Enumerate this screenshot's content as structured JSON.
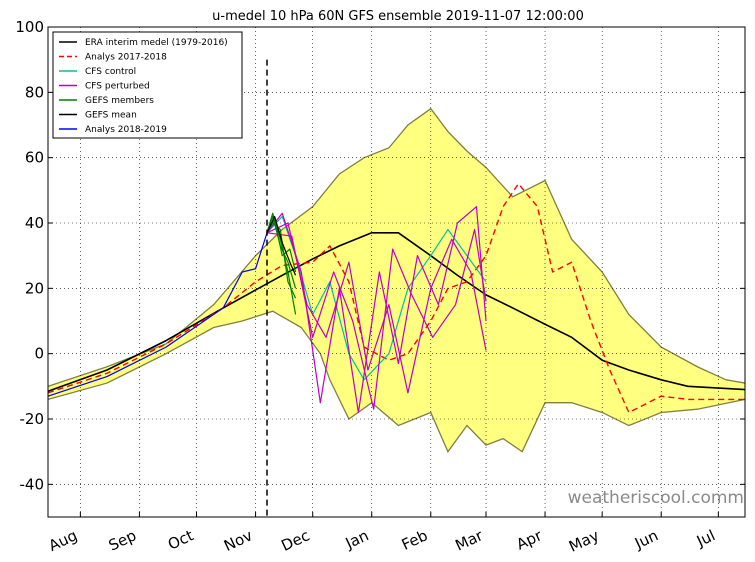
{
  "chart_data": {
    "type": "line",
    "title": "u-medel 10 hPa 60N GFS ensemble 2019-11-07 12:00:00",
    "xlabel": "",
    "ylabel": "",
    "ylim": [
      -50,
      100
    ],
    "yticks": [
      100,
      80,
      60,
      40,
      20,
      0,
      -20,
      -40
    ],
    "xticks": [
      "Aug",
      "Sep",
      "Oct",
      "Nov",
      "Dec",
      "Jan",
      "Feb",
      "Mar",
      "Apr",
      "May",
      "Jun",
      "Jul"
    ],
    "grid": true,
    "legend_position": "top-left",
    "forecast_marker_date": "2019-11-07",
    "forecast_marker_top": 90,
    "watermark": "weatheriscool.comm",
    "legend": [
      {
        "label": "ERA interim medel (1979-2016)",
        "color": "#000000",
        "dash": "solid"
      },
      {
        "label": "Analys 2017-2018",
        "color": "#ff0000",
        "dash": "dashed"
      },
      {
        "label": "CFS control",
        "color": "#00c0a0",
        "dash": "solid"
      },
      {
        "label": "CFS perturbed",
        "color": "#c000c0",
        "dash": "solid"
      },
      {
        "label": "GEFS members",
        "color": "#008000",
        "dash": "solid"
      },
      {
        "label": "GEFS mean",
        "color": "#000000",
        "dash": "solid"
      },
      {
        "label": "Analys 2018-2019",
        "color": "#0000ff",
        "dash": "solid"
      }
    ],
    "envelope": {
      "color": "#ffff80",
      "edge_color": "#808040",
      "upper": [
        {
          "x": "2019-07-15",
          "y": -10
        },
        {
          "x": "2019-08-15",
          "y": -4
        },
        {
          "x": "2019-09-15",
          "y": 3
        },
        {
          "x": "2019-10-10",
          "y": 15
        },
        {
          "x": "2019-11-01",
          "y": 30
        },
        {
          "x": "2019-11-15",
          "y": 38
        },
        {
          "x": "2019-12-01",
          "y": 45
        },
        {
          "x": "2019-12-15",
          "y": 55
        },
        {
          "x": "2019-12-28",
          "y": 60
        },
        {
          "x": "2020-01-10",
          "y": 63
        },
        {
          "x": "2020-01-20",
          "y": 70
        },
        {
          "x": "2020-02-01",
          "y": 75
        },
        {
          "x": "2020-02-10",
          "y": 68
        },
        {
          "x": "2020-02-20",
          "y": 62
        },
        {
          "x": "2020-03-01",
          "y": 57
        },
        {
          "x": "2020-03-15",
          "y": 48
        },
        {
          "x": "2020-04-01",
          "y": 53
        },
        {
          "x": "2020-04-15",
          "y": 35
        },
        {
          "x": "2020-05-01",
          "y": 25
        },
        {
          "x": "2020-05-15",
          "y": 12
        },
        {
          "x": "2020-06-01",
          "y": 2
        },
        {
          "x": "2020-06-20",
          "y": -4
        },
        {
          "x": "2020-07-05",
          "y": -8
        },
        {
          "x": "2020-07-15",
          "y": -9
        }
      ],
      "lower": [
        {
          "x": "2019-07-15",
          "y": -14
        },
        {
          "x": "2019-08-15",
          "y": -9
        },
        {
          "x": "2019-09-15",
          "y": 0
        },
        {
          "x": "2019-10-10",
          "y": 8
        },
        {
          "x": "2019-10-25",
          "y": 10
        },
        {
          "x": "2019-11-10",
          "y": 13
        },
        {
          "x": "2019-11-25",
          "y": 8
        },
        {
          "x": "2019-12-05",
          "y": 0
        },
        {
          "x": "2019-12-10",
          "y": -8
        },
        {
          "x": "2019-12-20",
          "y": -20
        },
        {
          "x": "2020-01-01",
          "y": -15
        },
        {
          "x": "2020-01-15",
          "y": -22
        },
        {
          "x": "2020-02-01",
          "y": -18
        },
        {
          "x": "2020-02-10",
          "y": -30
        },
        {
          "x": "2020-02-20",
          "y": -22
        },
        {
          "x": "2020-03-01",
          "y": -28
        },
        {
          "x": "2020-03-10",
          "y": -26
        },
        {
          "x": "2020-03-20",
          "y": -30
        },
        {
          "x": "2020-04-01",
          "y": -15
        },
        {
          "x": "2020-04-15",
          "y": -15
        },
        {
          "x": "2020-05-01",
          "y": -18
        },
        {
          "x": "2020-05-15",
          "y": -22
        },
        {
          "x": "2020-06-01",
          "y": -18
        },
        {
          "x": "2020-06-20",
          "y": -17
        },
        {
          "x": "2020-07-15",
          "y": -14
        }
      ]
    },
    "series": [
      {
        "name": "ERA interim medel (1979-2016)",
        "color": "#000000",
        "dash": "solid",
        "width": 1.6,
        "points": [
          {
            "x": "2019-07-15",
            "y": -11.5
          },
          {
            "x": "2019-08-15",
            "y": -5
          },
          {
            "x": "2019-09-15",
            "y": 4
          },
          {
            "x": "2019-10-15",
            "y": 14
          },
          {
            "x": "2019-11-15",
            "y": 24
          },
          {
            "x": "2019-12-01",
            "y": 29
          },
          {
            "x": "2019-12-15",
            "y": 33
          },
          {
            "x": "2020-01-01",
            "y": 37
          },
          {
            "x": "2020-01-15",
            "y": 37
          },
          {
            "x": "2020-02-01",
            "y": 30
          },
          {
            "x": "2020-02-15",
            "y": 24
          },
          {
            "x": "2020-03-01",
            "y": 18
          },
          {
            "x": "2020-03-15",
            "y": 14
          },
          {
            "x": "2020-04-01",
            "y": 9
          },
          {
            "x": "2020-04-15",
            "y": 5
          },
          {
            "x": "2020-05-01",
            "y": -2
          },
          {
            "x": "2020-05-15",
            "y": -5
          },
          {
            "x": "2020-06-01",
            "y": -8
          },
          {
            "x": "2020-06-15",
            "y": -10
          },
          {
            "x": "2020-07-15",
            "y": -11
          }
        ]
      },
      {
        "name": "Analys 2017-2018",
        "color": "#ff0000",
        "dash": "dashed",
        "width": 1.4,
        "points": [
          {
            "x": "2019-07-15",
            "y": -12
          },
          {
            "x": "2019-08-15",
            "y": -6
          },
          {
            "x": "2019-09-15",
            "y": 3
          },
          {
            "x": "2019-10-15",
            "y": 14
          },
          {
            "x": "2019-11-01",
            "y": 22
          },
          {
            "x": "2019-11-15",
            "y": 27
          },
          {
            "x": "2019-12-01",
            "y": 28
          },
          {
            "x": "2019-12-10",
            "y": 33
          },
          {
            "x": "2019-12-20",
            "y": 22
          },
          {
            "x": "2019-12-28",
            "y": 2
          },
          {
            "x": "2020-01-10",
            "y": -2
          },
          {
            "x": "2020-01-20",
            "y": 0
          },
          {
            "x": "2020-02-01",
            "y": 10
          },
          {
            "x": "2020-02-10",
            "y": 20
          },
          {
            "x": "2020-02-20",
            "y": 22
          },
          {
            "x": "2020-03-01",
            "y": 30
          },
          {
            "x": "2020-03-10",
            "y": 45
          },
          {
            "x": "2020-03-18",
            "y": 52
          },
          {
            "x": "2020-03-28",
            "y": 45
          },
          {
            "x": "2020-04-05",
            "y": 25
          },
          {
            "x": "2020-04-15",
            "y": 28
          },
          {
            "x": "2020-04-25",
            "y": 10
          },
          {
            "x": "2020-05-05",
            "y": -5
          },
          {
            "x": "2020-05-15",
            "y": -18
          },
          {
            "x": "2020-06-01",
            "y": -13
          },
          {
            "x": "2020-06-15",
            "y": -14
          },
          {
            "x": "2020-07-15",
            "y": -14
          }
        ]
      },
      {
        "name": "Analys 2018-2019",
        "color": "#0000ff",
        "dash": "solid",
        "width": 1.2,
        "points": [
          {
            "x": "2019-07-15",
            "y": -13
          },
          {
            "x": "2019-08-15",
            "y": -7
          },
          {
            "x": "2019-09-15",
            "y": 2
          },
          {
            "x": "2019-10-15",
            "y": 14
          },
          {
            "x": "2019-10-25",
            "y": 25
          },
          {
            "x": "2019-11-01",
            "y": 26
          },
          {
            "x": "2019-11-07",
            "y": 37
          }
        ]
      },
      {
        "name": "CFS control",
        "color": "#00c0a0",
        "dash": "solid",
        "width": 1.2,
        "points": [
          {
            "x": "2019-11-07",
            "y": 37
          },
          {
            "x": "2019-11-15",
            "y": 42
          },
          {
            "x": "2019-11-22",
            "y": 30
          },
          {
            "x": "2019-12-01",
            "y": 12
          },
          {
            "x": "2019-12-10",
            "y": 22
          },
          {
            "x": "2019-12-20",
            "y": 0
          },
          {
            "x": "2019-12-28",
            "y": -8
          },
          {
            "x": "2020-01-10",
            "y": 0
          },
          {
            "x": "2020-01-20",
            "y": 20
          },
          {
            "x": "2020-02-01",
            "y": 30
          },
          {
            "x": "2020-02-10",
            "y": 38
          },
          {
            "x": "2020-02-20",
            "y": 30
          },
          {
            "x": "2020-03-01",
            "y": 22
          }
        ]
      },
      {
        "name": "CFS perturbed",
        "color": "#c000c0",
        "dash": "solid",
        "width": 1.2,
        "points": [
          {
            "x": "2019-11-07",
            "y": 37
          },
          {
            "x": "2019-11-15",
            "y": 43
          },
          {
            "x": "2019-11-25",
            "y": 25
          },
          {
            "x": "2019-12-05",
            "y": -15
          },
          {
            "x": "2019-12-15",
            "y": 20
          },
          {
            "x": "2019-12-25",
            "y": -18
          },
          {
            "x": "2020-01-05",
            "y": 25
          },
          {
            "x": "2020-01-15",
            "y": -3
          },
          {
            "x": "2020-01-25",
            "y": 30
          },
          {
            "x": "2020-02-05",
            "y": 15
          },
          {
            "x": "2020-02-15",
            "y": 40
          },
          {
            "x": "2020-02-25",
            "y": 45
          },
          {
            "x": "2020-03-01",
            "y": 10
          }
        ]
      },
      {
        "name": "CFS perturbed",
        "color": "#c000c0",
        "dash": "solid",
        "width": 1.2,
        "points": [
          {
            "x": "2019-11-07",
            "y": 37
          },
          {
            "x": "2019-11-18",
            "y": 40
          },
          {
            "x": "2019-11-28",
            "y": 15
          },
          {
            "x": "2019-12-08",
            "y": 5
          },
          {
            "x": "2019-12-20",
            "y": 28
          },
          {
            "x": "2019-12-30",
            "y": -5
          },
          {
            "x": "2020-01-10",
            "y": 15
          },
          {
            "x": "2020-01-20",
            "y": -12
          },
          {
            "x": "2020-02-01",
            "y": 20
          },
          {
            "x": "2020-02-12",
            "y": 35
          },
          {
            "x": "2020-02-22",
            "y": 25
          },
          {
            "x": "2020-03-01",
            "y": 1
          }
        ]
      },
      {
        "name": "CFS perturbed",
        "color": "#c000c0",
        "dash": "solid",
        "width": 1.2,
        "points": [
          {
            "x": "2019-11-07",
            "y": 37
          },
          {
            "x": "2019-11-20",
            "y": 36
          },
          {
            "x": "2019-12-01",
            "y": 5
          },
          {
            "x": "2019-12-12",
            "y": 25
          },
          {
            "x": "2019-12-22",
            "y": 10
          },
          {
            "x": "2020-01-02",
            "y": -17
          },
          {
            "x": "2020-01-12",
            "y": 32
          },
          {
            "x": "2020-01-22",
            "y": 18
          },
          {
            "x": "2020-02-02",
            "y": 5
          },
          {
            "x": "2020-02-14",
            "y": 15
          },
          {
            "x": "2020-02-24",
            "y": 38
          },
          {
            "x": "2020-03-01",
            "y": 16
          }
        ]
      },
      {
        "name": "GEFS members",
        "color": "#008000",
        "dash": "solid",
        "width": 1.2,
        "points": [
          {
            "x": "2019-11-07",
            "y": 37
          },
          {
            "x": "2019-11-10",
            "y": 43
          },
          {
            "x": "2019-11-14",
            "y": 35
          },
          {
            "x": "2019-11-18",
            "y": 25
          },
          {
            "x": "2019-11-22",
            "y": 12
          }
        ]
      },
      {
        "name": "GEFS members",
        "color": "#008000",
        "dash": "solid",
        "width": 1.2,
        "points": [
          {
            "x": "2019-11-07",
            "y": 37
          },
          {
            "x": "2019-11-10",
            "y": 42
          },
          {
            "x": "2019-11-14",
            "y": 33
          },
          {
            "x": "2019-11-18",
            "y": 28
          },
          {
            "x": "2019-11-22",
            "y": 20
          }
        ]
      },
      {
        "name": "GEFS members",
        "color": "#008000",
        "dash": "solid",
        "width": 1.2,
        "points": [
          {
            "x": "2019-11-07",
            "y": 37
          },
          {
            "x": "2019-11-11",
            "y": 41
          },
          {
            "x": "2019-11-15",
            "y": 30
          },
          {
            "x": "2019-11-19",
            "y": 32
          },
          {
            "x": "2019-11-22",
            "y": 25
          }
        ]
      },
      {
        "name": "GEFS members",
        "color": "#008000",
        "dash": "solid",
        "width": 1.2,
        "points": [
          {
            "x": "2019-11-07",
            "y": 37
          },
          {
            "x": "2019-11-10",
            "y": 40
          },
          {
            "x": "2019-11-14",
            "y": 38
          },
          {
            "x": "2019-11-18",
            "y": 22
          },
          {
            "x": "2019-11-22",
            "y": 17
          }
        ]
      },
      {
        "name": "GEFS mean",
        "color": "#000000",
        "dash": "solid",
        "width": 1.2,
        "points": [
          {
            "x": "2019-11-07",
            "y": 37
          },
          {
            "x": "2019-11-11",
            "y": 42
          },
          {
            "x": "2019-11-15",
            "y": 34
          },
          {
            "x": "2019-11-19",
            "y": 28
          },
          {
            "x": "2019-11-22",
            "y": 24
          }
        ]
      }
    ]
  }
}
